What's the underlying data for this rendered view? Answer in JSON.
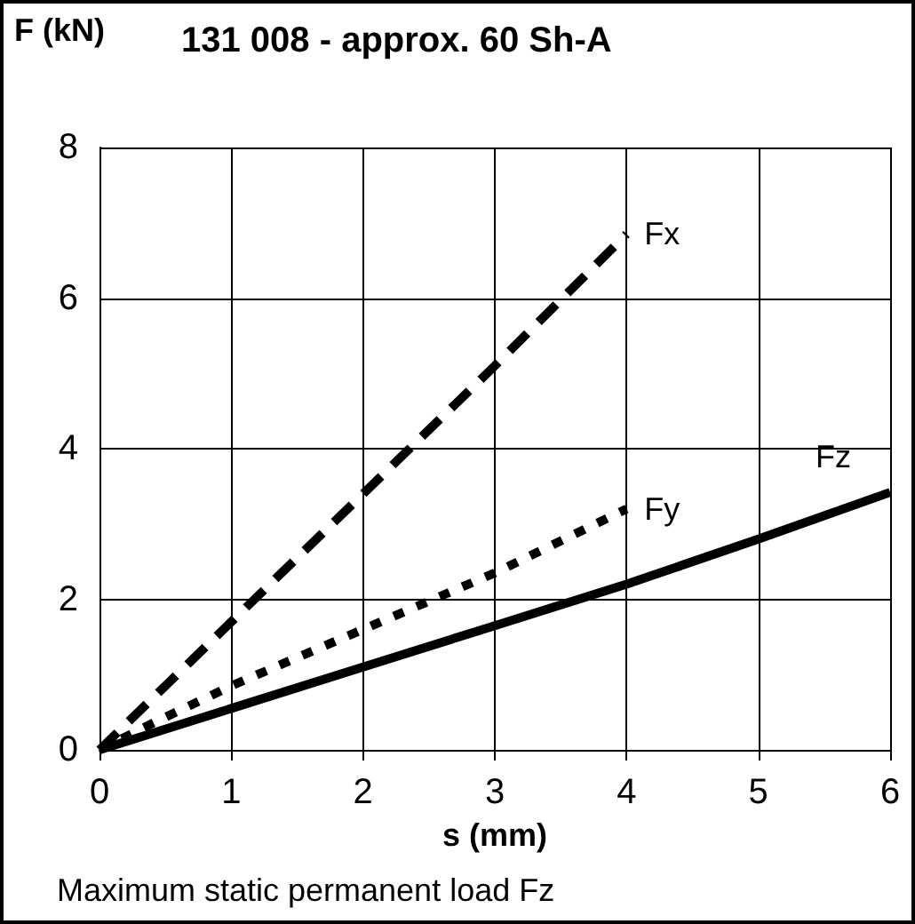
{
  "chart_data": {
    "type": "line",
    "title": "131 008 - approx. 60 Sh-A",
    "xlabel": "s (mm)",
    "ylabel": "F (kN)",
    "annotations": [
      "Maximum static permanent load Fz"
    ],
    "xlim": [
      0,
      6
    ],
    "xticks": [
      0,
      1,
      2,
      3,
      4,
      5,
      6
    ],
    "ylim": [
      0,
      8
    ],
    "yticks": [
      0,
      2,
      4,
      6,
      8
    ],
    "grid": true,
    "legend": false,
    "marker": "none",
    "series": [
      {
        "name": "Fx",
        "color": "#000000",
        "line_style": "dashed",
        "x": [
          0,
          1,
          2,
          3,
          4
        ],
        "values": [
          0,
          1.7,
          3.4,
          5.1,
          6.85
        ]
      },
      {
        "name": "Fy",
        "color": "#000000",
        "line_style": "dotted",
        "x": [
          0,
          0.4,
          1,
          2,
          3,
          4
        ],
        "values": [
          0,
          0.35,
          0.85,
          1.6,
          2.35,
          3.2
        ]
      },
      {
        "name": "Fz",
        "color": "#000000",
        "line_style": "solid",
        "x": [
          0,
          1,
          2,
          3,
          4,
          5,
          6
        ],
        "values": [
          0,
          0.55,
          1.1,
          1.65,
          2.2,
          2.8,
          3.42
        ]
      }
    ]
  }
}
